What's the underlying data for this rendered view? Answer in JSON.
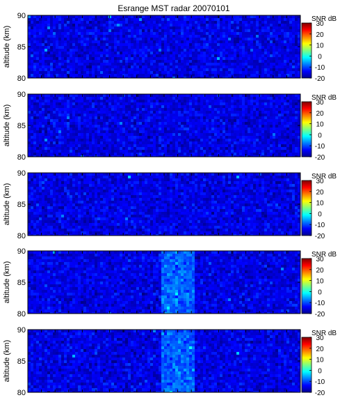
{
  "chart_data": {
    "type": "heatmap",
    "title": "Esrange MST radar 20070101",
    "ylabel": "altitude (km)",
    "ylim": [
      80,
      90
    ],
    "yticks": [
      80,
      85,
      90
    ],
    "colorbar": {
      "label": "SNR dB",
      "range": [
        -20,
        30
      ],
      "ticks": [
        -20,
        -10,
        0,
        10,
        20,
        30
      ],
      "colormap": "jet"
    },
    "panels": [
      {
        "background_snr_db": -15,
        "enhanced_band": null
      },
      {
        "background_snr_db": -15,
        "enhanced_band": null
      },
      {
        "background_snr_db": -15,
        "enhanced_band": null
      },
      {
        "background_snr_db": -15,
        "enhanced_band": {
          "x_fraction": [
            0.49,
            0.61
          ],
          "snr_db": -9
        }
      },
      {
        "background_snr_db": -15,
        "enhanced_band": {
          "x_fraction": [
            0.49,
            0.61
          ],
          "snr_db": -9
        }
      }
    ],
    "x_ticks_count": 20
  }
}
